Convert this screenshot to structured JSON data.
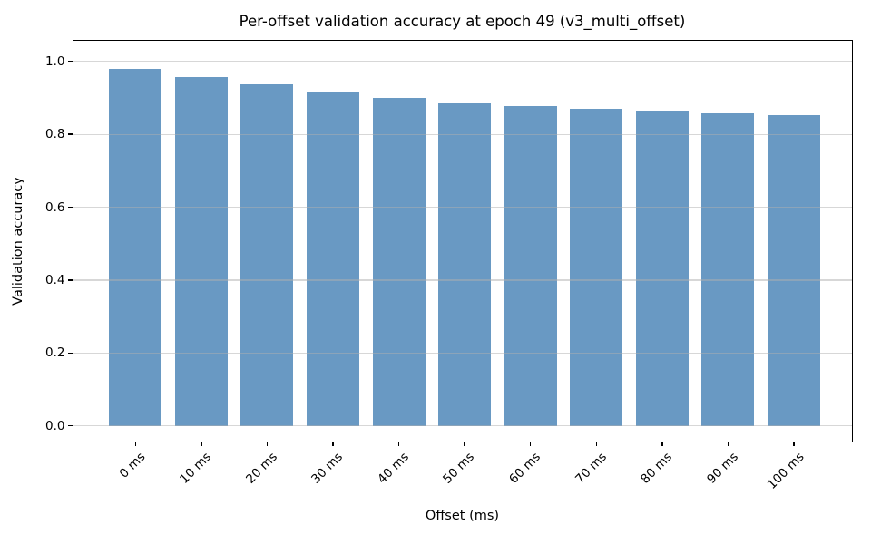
{
  "figure": {
    "background_color": "#ffffff"
  },
  "chart_data": {
    "type": "bar",
    "title": "Per-offset validation accuracy at epoch 49 (v3_multi_offset)",
    "xlabel": "Offset (ms)",
    "ylabel": "Validation accuracy",
    "categories": [
      "0 ms",
      "10 ms",
      "20 ms",
      "30 ms",
      "40 ms",
      "50 ms",
      "60 ms",
      "70 ms",
      "80 ms",
      "90 ms",
      "100 ms"
    ],
    "values": [
      0.98,
      0.958,
      0.937,
      0.917,
      0.9,
      0.886,
      0.877,
      0.869,
      0.865,
      0.857,
      0.853
    ],
    "yticks": [
      0.0,
      0.2,
      0.4,
      0.6,
      0.8,
      1.0
    ],
    "ytick_labels": [
      "0.0",
      "0.2",
      "0.4",
      "0.6",
      "0.8",
      "1.0"
    ],
    "ylim": [
      -0.044,
      1.059
    ],
    "grid": "horizontal",
    "legend_position": "none",
    "bar_color": "#6999c3",
    "grid_color": "#b0b0b0",
    "axis_color": "#000000",
    "text_color": "#000000"
  }
}
